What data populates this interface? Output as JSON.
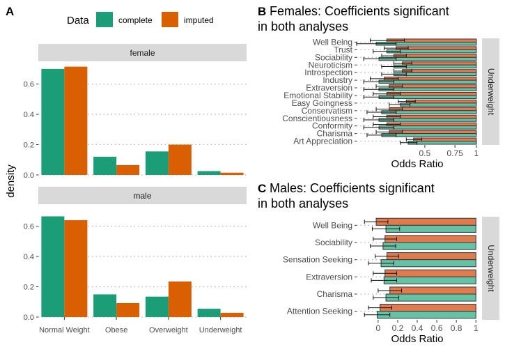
{
  "colors": {
    "complete": "#1b9e77",
    "imputed": "#d95f02",
    "complete_light": "#66c2a5",
    "imputed_light": "#e07b50",
    "strip_bg": "#d9d9d9",
    "grid": "#b3b3b3"
  },
  "chart_data": [
    {
      "id": "A",
      "panel_letter": "A",
      "type": "bar",
      "title": "",
      "ylabel": "density",
      "xlabel": "",
      "legend": {
        "title": "Data",
        "placement": "top",
        "entries": [
          "complete",
          "imputed"
        ]
      },
      "categories": [
        "Normal Weight",
        "Obese",
        "Overweight",
        "Underweight"
      ],
      "ylim": [
        0,
        0.75
      ],
      "yticks": [
        "0.0",
        "0.2",
        "0.4",
        "0.6"
      ],
      "facets": [
        {
          "strip": "female",
          "series": [
            {
              "name": "complete",
              "values": [
                0.7,
                0.12,
                0.155,
                0.025
              ]
            },
            {
              "name": "imputed",
              "values": [
                0.715,
                0.065,
                0.2,
                0.015
              ]
            }
          ]
        },
        {
          "strip": "male",
          "series": [
            {
              "name": "complete",
              "values": [
                0.665,
                0.15,
                0.135,
                0.055
              ]
            },
            {
              "name": "imputed",
              "values": [
                0.64,
                0.092,
                0.235,
                0.028
              ]
            }
          ]
        }
      ],
      "grid": "horizontal dotted"
    },
    {
      "id": "B",
      "panel_letter": "B",
      "type": "bar",
      "orientation": "horizontal",
      "title_lines": [
        "Females: Coefficients significant",
        "in both analyses"
      ],
      "xlabel": "Odds Ratio",
      "strip": "Underweight",
      "scale": "log",
      "xlim": [
        0.2,
        1.02
      ],
      "xticks": [
        {
          "v": 0.5,
          "label": "0.5"
        },
        {
          "v": 0.75,
          "label": "0.75"
        },
        {
          "v": 1,
          "label": "1"
        }
      ],
      "categories": [
        "Well Being",
        "Trust",
        "Sociability",
        "Neuroticism",
        "Introspection",
        "Industry",
        "Extraversion",
        "Emotional Stability",
        "Easy Goingness",
        "Conservatism",
        "Conscientiousness",
        "Conformity",
        "Charisma",
        "Art Appreciation"
      ],
      "series": [
        {
          "name": "imputed",
          "values": [
            0.3,
            0.34,
            0.33,
            0.37,
            0.37,
            0.29,
            0.31,
            0.3,
            0.39,
            0.31,
            0.3,
            0.3,
            0.31,
            0.43
          ],
          "lower": [
            0.24,
            0.29,
            0.28,
            0.33,
            0.33,
            0.24,
            0.26,
            0.25,
            0.35,
            0.26,
            0.25,
            0.25,
            0.26,
            0.39
          ],
          "upper": [
            0.38,
            0.4,
            0.39,
            0.42,
            0.42,
            0.35,
            0.37,
            0.36,
            0.44,
            0.37,
            0.36,
            0.36,
            0.37,
            0.48
          ]
        },
        {
          "name": "complete",
          "values": [
            0.26,
            0.3,
            0.27,
            0.33,
            0.33,
            0.27,
            0.27,
            0.27,
            0.36,
            0.28,
            0.27,
            0.27,
            0.28,
            0.4
          ],
          "lower": [
            0.2,
            0.25,
            0.22,
            0.28,
            0.28,
            0.22,
            0.22,
            0.22,
            0.31,
            0.23,
            0.22,
            0.22,
            0.23,
            0.36
          ],
          "upper": [
            0.34,
            0.36,
            0.34,
            0.39,
            0.39,
            0.33,
            0.33,
            0.33,
            0.41,
            0.34,
            0.33,
            0.33,
            0.34,
            0.45
          ]
        }
      ]
    },
    {
      "id": "C",
      "panel_letter": "C",
      "type": "bar",
      "orientation": "horizontal",
      "title_lines": [
        "Males: Coefficients significant",
        "in both analyses"
      ],
      "xlabel": "Odds Ratio",
      "strip": "Underweight",
      "scale": "linear",
      "xlim": [
        -0.22,
        1.02
      ],
      "xticks": [
        {
          "v": 0,
          "label": "0"
        },
        {
          "v": 0.2,
          "label": "0.2"
        },
        {
          "v": 0.4,
          "label": "0.4"
        },
        {
          "v": 0.6,
          "label": "0.6"
        },
        {
          "v": 0.8,
          "label": "0.8"
        },
        {
          "v": 1,
          "label": "1"
        }
      ],
      "categories": [
        "Well Being",
        "Sociability",
        "Sensation Seeking",
        "Extraversion",
        "Charisma",
        "Attention Seeking"
      ],
      "series": [
        {
          "name": "imputed",
          "values": [
            -0.02,
            0.07,
            0.09,
            0.07,
            0.12,
            0.02
          ],
          "lower": [
            -0.14,
            -0.05,
            -0.03,
            -0.05,
            0.0,
            -0.1
          ],
          "upper": [
            0.1,
            0.19,
            0.21,
            0.19,
            0.24,
            0.14
          ]
        },
        {
          "name": "complete",
          "values": [
            0.08,
            0.05,
            0.03,
            0.06,
            0.08,
            -0.01
          ],
          "lower": [
            -0.06,
            -0.08,
            -0.1,
            -0.07,
            -0.05,
            -0.14
          ],
          "upper": [
            0.22,
            0.18,
            0.16,
            0.19,
            0.21,
            0.12
          ]
        }
      ]
    }
  ]
}
